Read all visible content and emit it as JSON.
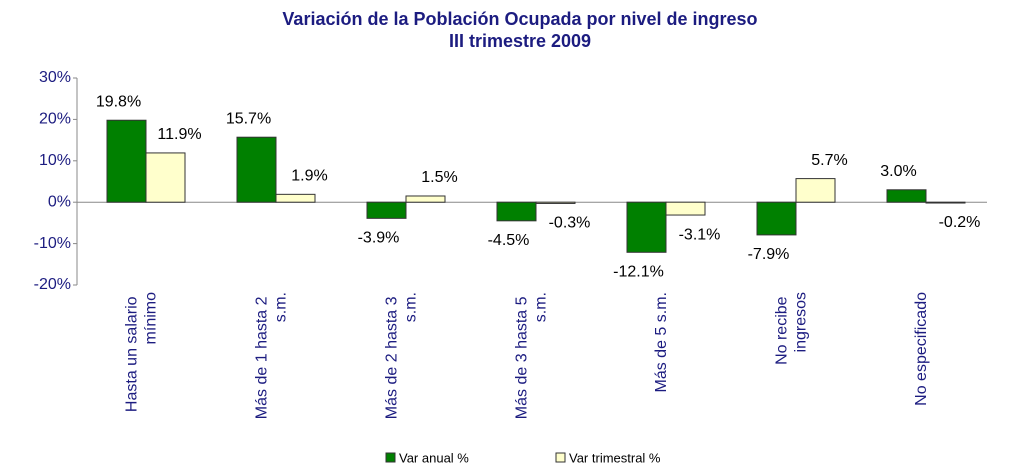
{
  "chart_data": {
    "type": "bar",
    "title": "Variación de la Población Ocupada por nivel de ingreso",
    "subtitle": "III trimestre 2009",
    "categories": [
      "Hasta un salario mínimo",
      "Más de 1 hasta 2 s.m.",
      "Más de 2 hasta 3 s.m.",
      "Más de 3 hasta 5 s.m.",
      "Más de 5 s.m.",
      "No recibe ingresos",
      "No especificado"
    ],
    "series": [
      {
        "name": "Var anual %",
        "color": "#008000",
        "values": [
          19.8,
          15.7,
          -3.9,
          -4.5,
          -12.1,
          -7.9,
          3.0
        ],
        "value_labels": [
          "19.8%",
          "15.7%",
          "-3.9%",
          "-4.5%",
          "-12.1%",
          "-7.9%",
          "3.0%"
        ]
      },
      {
        "name": "Var trimestral %",
        "color": "#ffffcc",
        "values": [
          11.9,
          1.9,
          1.5,
          -0.3,
          -3.1,
          5.7,
          -0.2
        ],
        "value_labels": [
          "11.9%",
          "1.9%",
          "1.5%",
          "-0.3%",
          "-3.1%",
          "5.7%",
          "-0.2%"
        ]
      }
    ],
    "ylim": [
      -20,
      30
    ],
    "yticks": [
      {
        "value": -20,
        "label": "-20%"
      },
      {
        "value": -10,
        "label": "-10%"
      },
      {
        "value": 0,
        "label": "0%"
      },
      {
        "value": 10,
        "label": "10%"
      },
      {
        "value": 20,
        "label": "20%"
      },
      {
        "value": 30,
        "label": "30%"
      }
    ],
    "legend": "bottom"
  }
}
